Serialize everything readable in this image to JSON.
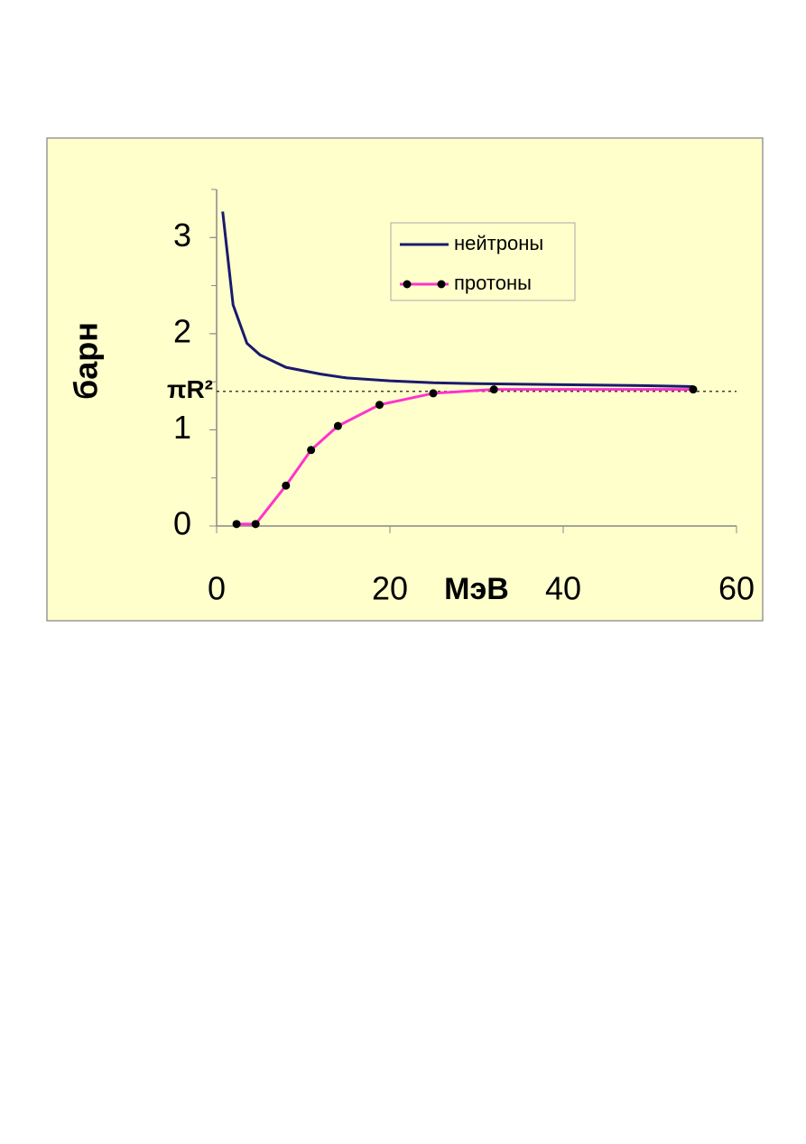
{
  "chart_data": {
    "type": "line",
    "y_label": "барн",
    "x_label": "МэВ",
    "xlim": [
      0,
      60
    ],
    "xticks": [
      0,
      20,
      40,
      60
    ],
    "ylim": [
      0,
      3.5
    ],
    "yticks": [
      0,
      1,
      2,
      3
    ],
    "reference_line": {
      "value": 1.4,
      "label": "πR²"
    },
    "legend": "top-right",
    "series": [
      {
        "name": "нейтроны",
        "color": "#1a1a6e",
        "marker": false,
        "x": [
          0.7,
          1.9,
          3.5,
          5,
          8,
          12,
          15,
          20,
          25,
          30,
          40,
          49,
          55
        ],
        "values": [
          3.27,
          2.3,
          1.9,
          1.78,
          1.65,
          1.58,
          1.54,
          1.51,
          1.49,
          1.48,
          1.47,
          1.46,
          1.45
        ]
      },
      {
        "name": "протоны",
        "color": "#ff33cc",
        "marker": true,
        "x": [
          2.3,
          4.5,
          8,
          10.9,
          14,
          18.8,
          25,
          32,
          55
        ],
        "values": [
          0.02,
          0.02,
          0.42,
          0.79,
          1.04,
          1.26,
          1.38,
          1.42,
          1.42
        ]
      }
    ]
  }
}
